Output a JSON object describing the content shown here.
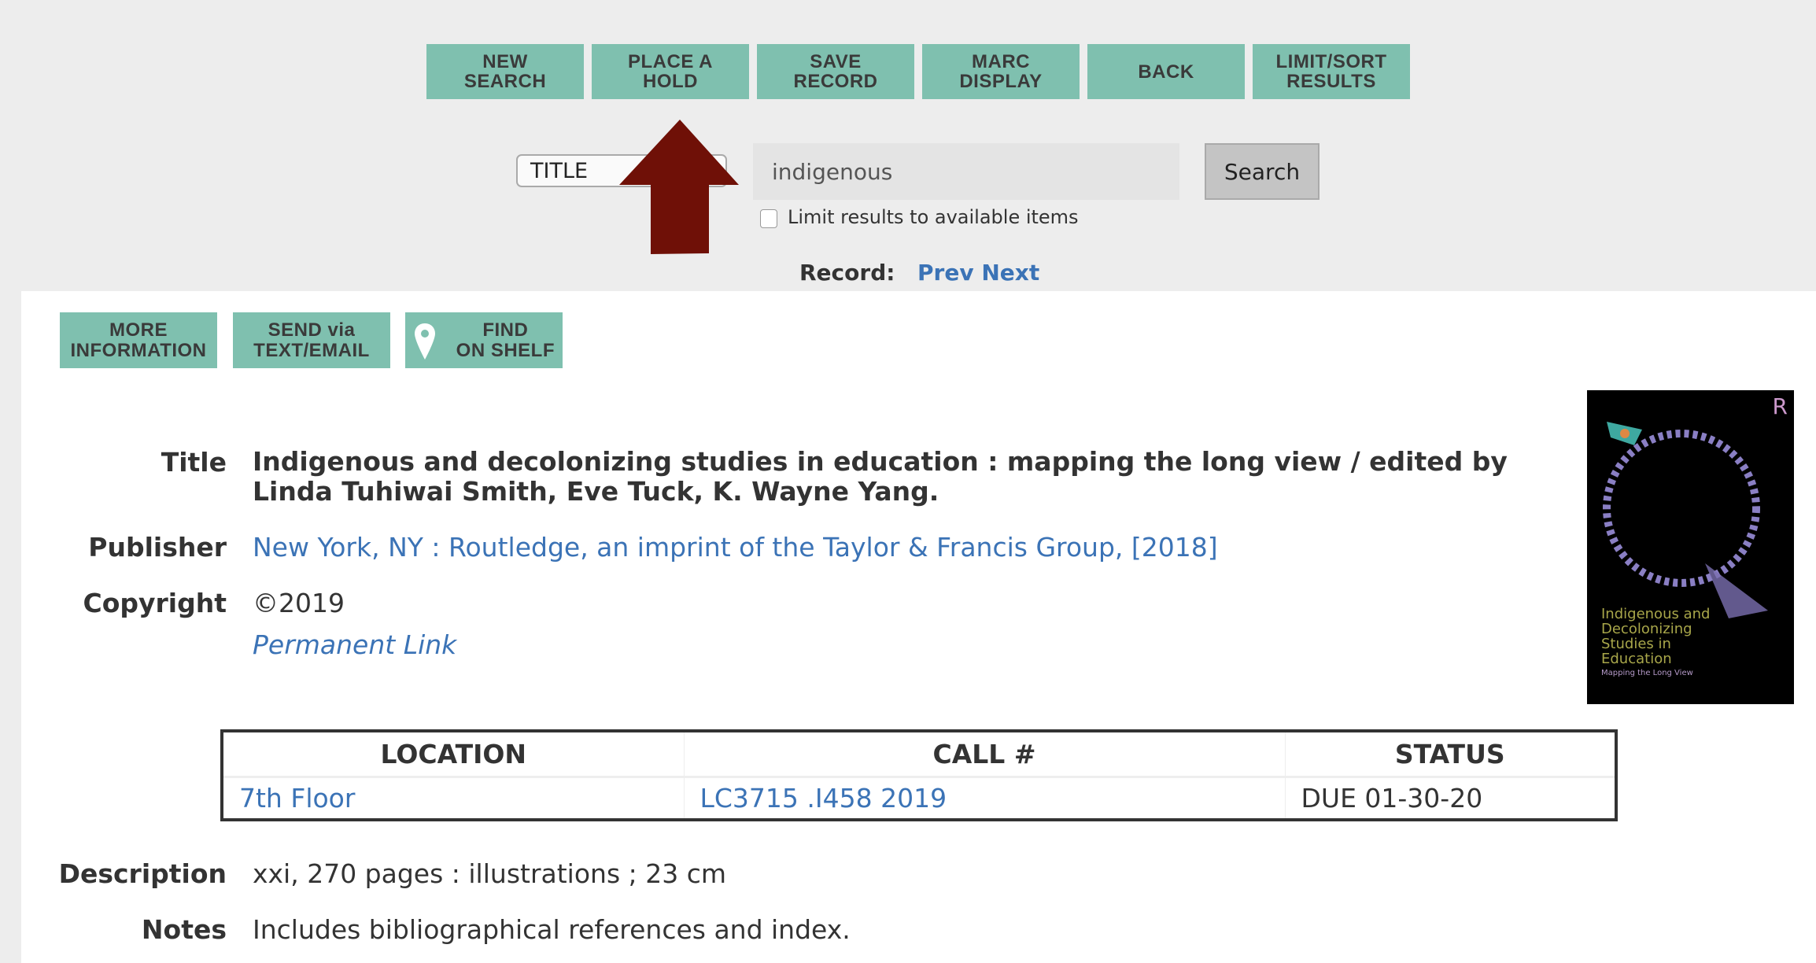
{
  "toolbar": {
    "buttons": [
      "NEW\nSEARCH",
      "PLACE A\nHOLD",
      "SAVE\nRECORD",
      "MARC\nDISPLAY",
      "BACK",
      "LIMIT/SORT\nRESULTS"
    ],
    "button_color": "#7fc0af"
  },
  "search": {
    "field": "TITLE",
    "query": "indigenous",
    "button": "Search",
    "limit_label": "Limit results to available items"
  },
  "record_nav": {
    "label": "Record:",
    "prev": "Prev",
    "next": "Next"
  },
  "annotation": {
    "icon": "arrow-up-icon",
    "color": "#6f1007"
  },
  "actions": [
    "MORE\nINFORMATION",
    "SEND via\nTEXT/EMAIL",
    "FIND\nON SHELF"
  ],
  "details": {
    "title_label": "Title",
    "title": "Indigenous and decolonizing studies in education : mapping the long view / edited by Linda Tuhiwai Smith, Eve Tuck, K. Wayne Yang.",
    "publisher_label": "Publisher",
    "publisher": "New York, NY : Routledge, an imprint of the Taylor & Francis Group, [2018]",
    "copyright_label": "Copyright",
    "copyright": "©2019",
    "permalink": "Permanent Link",
    "description_label": "Description",
    "description": "xxi, 270 pages : illustrations ; 23 cm",
    "notes_label": "Notes",
    "notes": "Includes bibliographical references and index."
  },
  "cover": {
    "title": "Indigenous and Decolonizing Studies in Education",
    "subtitle": "Mapping the Long View",
    "publisher_mark": "R"
  },
  "holdings": {
    "headers": [
      "LOCATION",
      "CALL #",
      "STATUS"
    ],
    "rows": [
      [
        "7th Floor",
        "LC3715 .I458 2019",
        "DUE 01-30-20"
      ]
    ]
  }
}
